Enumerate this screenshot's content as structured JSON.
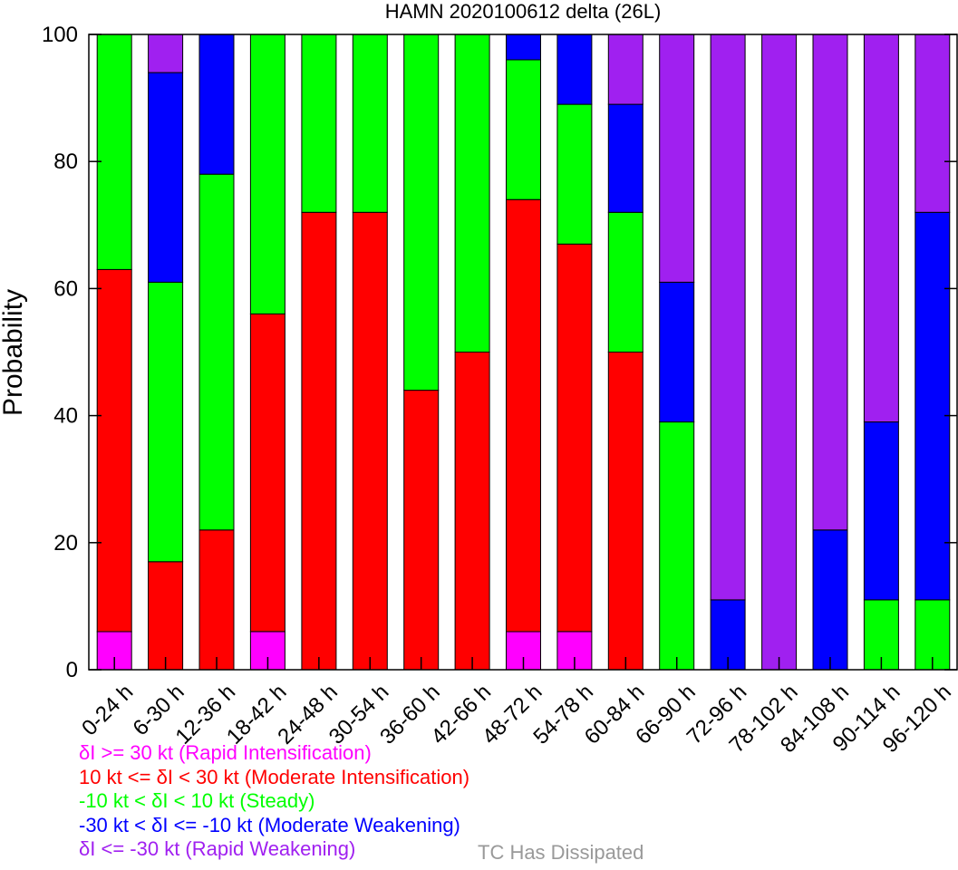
{
  "chart_data": {
    "type": "bar",
    "stacked": true,
    "title": "HAMN 2020100612 delta (26L)",
    "ylabel": "Probability",
    "xlabel": "",
    "ylim": [
      0,
      100
    ],
    "yticks": [
      "0",
      "20",
      "40",
      "60",
      "80",
      "100"
    ],
    "categories": [
      "0-24 h",
      "6-30 h",
      "12-36 h",
      "18-42 h",
      "24-48 h",
      "30-54 h",
      "36-60 h",
      "42-66 h",
      "48-72 h",
      "54-78 h",
      "60-84 h",
      "66-90 h",
      "72-96 h",
      "78-102 h",
      "84-108 h",
      "90-114 h",
      "96-120 h"
    ],
    "series": [
      {
        "key": "ri",
        "color": "#ff00ff",
        "values": [
          6,
          0,
          0,
          6,
          0,
          0,
          0,
          0,
          6,
          6,
          0,
          0,
          0,
          0,
          0,
          0,
          0
        ]
      },
      {
        "key": "mi",
        "color": "#ff0000",
        "values": [
          57,
          17,
          22,
          50,
          72,
          72,
          44,
          50,
          68,
          61,
          50,
          0,
          0,
          0,
          0,
          0,
          0
        ]
      },
      {
        "key": "steady",
        "color": "#00ff00",
        "values": [
          37,
          44,
          56,
          44,
          28,
          28,
          56,
          50,
          22,
          22,
          22,
          39,
          0,
          0,
          0,
          11,
          11
        ]
      },
      {
        "key": "mw",
        "color": "#0000ff",
        "values": [
          0,
          33,
          22,
          0,
          0,
          0,
          0,
          0,
          4,
          11,
          17,
          22,
          11,
          0,
          22,
          28,
          61
        ]
      },
      {
        "key": "rw",
        "color": "#a020f0",
        "values": [
          0,
          6,
          0,
          0,
          0,
          0,
          0,
          0,
          0,
          0,
          11,
          39,
          89,
          100,
          78,
          61,
          28
        ]
      }
    ],
    "legend": [
      {
        "text": "δI >= 30 kt (Rapid Intensification)",
        "color": "#ff00ff"
      },
      {
        "text": "10 kt <= δI < 30 kt (Moderate Intensification)",
        "color": "#ff0000"
      },
      {
        "text": "-10 kt < δI < 10 kt (Steady)",
        "color": "#00ff00"
      },
      {
        "text": "-30 kt < δI <= -10 kt (Moderate Weakening)",
        "color": "#0000ff"
      },
      {
        "text": "δI <= -30 kt (Rapid Weakening)",
        "color": "#a020f0"
      }
    ],
    "dissipated_label": "TC Has Dissipated",
    "dissipated_color": "#999999",
    "legend_placement": "bottom-left",
    "grid": false
  }
}
